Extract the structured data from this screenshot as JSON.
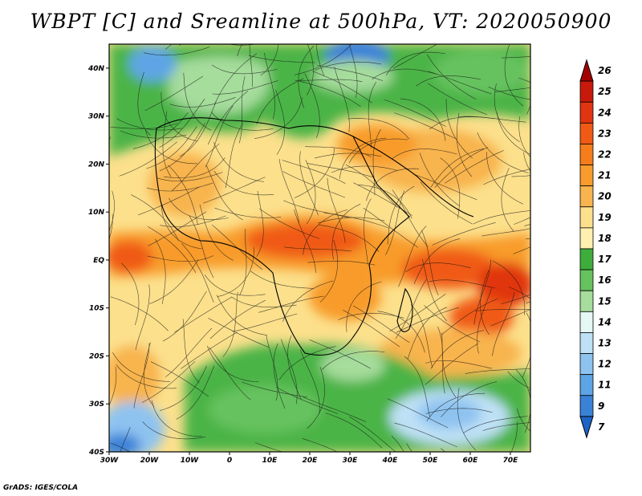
{
  "title": "WBPT [C] and Sreamline at 500hPa, VT: 2020050900",
  "credit": "GrADS: IGES/COLA",
  "map": {
    "lat_labels": [
      "40N",
      "30N",
      "20N",
      "10N",
      "EQ",
      "10S",
      "20S",
      "30S",
      "40S"
    ],
    "lat_values": [
      40,
      30,
      20,
      10,
      0,
      -10,
      -20,
      -30,
      -40
    ],
    "lon_labels": [
      "30W",
      "20W",
      "10W",
      "0",
      "10E",
      "20E",
      "30E",
      "40E",
      "50E",
      "60E",
      "70E"
    ],
    "lon_values": [
      -30,
      -20,
      -10,
      0,
      10,
      20,
      30,
      40,
      50,
      60,
      70
    ],
    "lon_range": [
      -30,
      75
    ],
    "lat_range": [
      -40,
      45
    ]
  },
  "colorbar": {
    "labels": [
      "26",
      "25",
      "24",
      "23",
      "22",
      "21",
      "20",
      "19",
      "18",
      "17",
      "16",
      "15",
      "14",
      "13",
      "12",
      "11",
      "9",
      "7"
    ],
    "colors": [
      "#a50000",
      "#c81a0c",
      "#e03510",
      "#f05a14",
      "#f57d1c",
      "#f89b2c",
      "#f8b44e",
      "#fce08c",
      "#fdf0b0",
      "#3fad3c",
      "#66c25e",
      "#a6dc9c",
      "#e6f8f4",
      "#bfe1f6",
      "#8ec3f0",
      "#5ea5e6",
      "#3a82d8",
      "#1e63c6"
    ]
  }
}
